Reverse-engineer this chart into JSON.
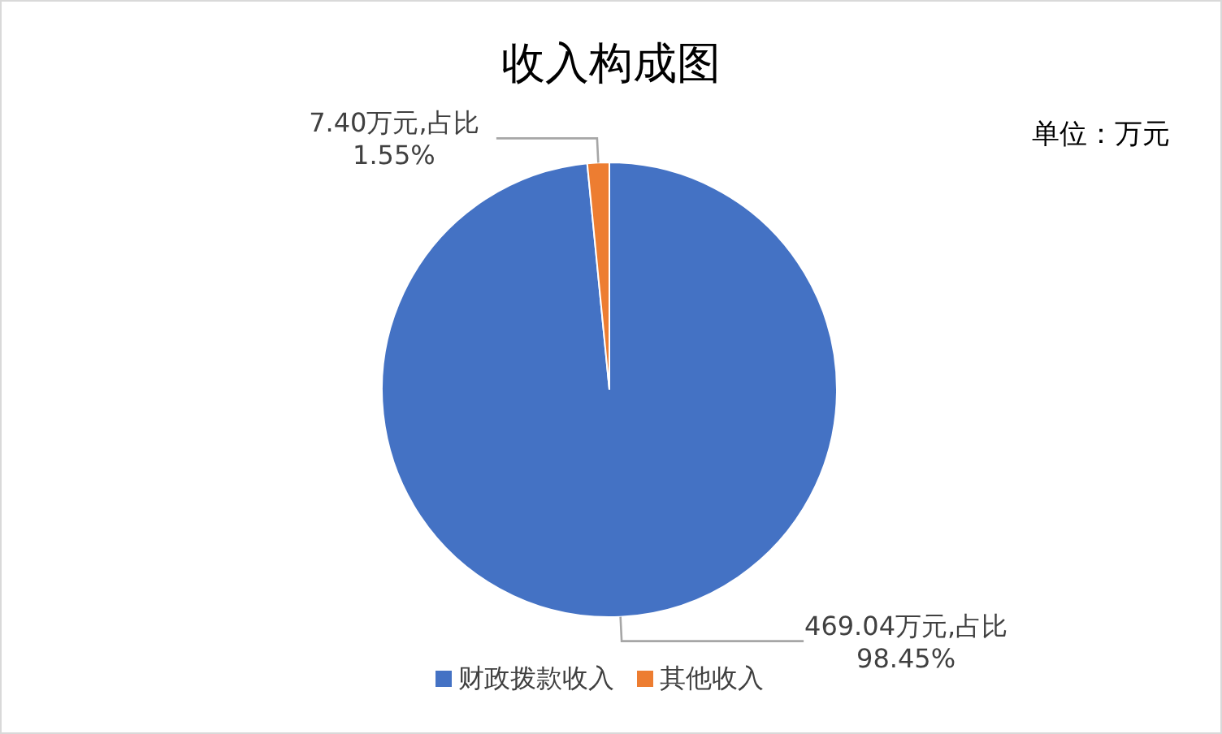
{
  "chart_data": {
    "type": "pie",
    "title": "收入构成图",
    "categories": [
      "财政拨款收入",
      "其他收入"
    ],
    "values": [
      469.04,
      7.4
    ],
    "colors": [
      "#4472c4",
      "#ed7d31"
    ],
    "value_labels": [
      "469.04万元,占比\n98.45%",
      "7.40万元,占比\n1.55%"
    ],
    "annotations": [
      "单位：万元"
    ],
    "legend": "bottom"
  }
}
